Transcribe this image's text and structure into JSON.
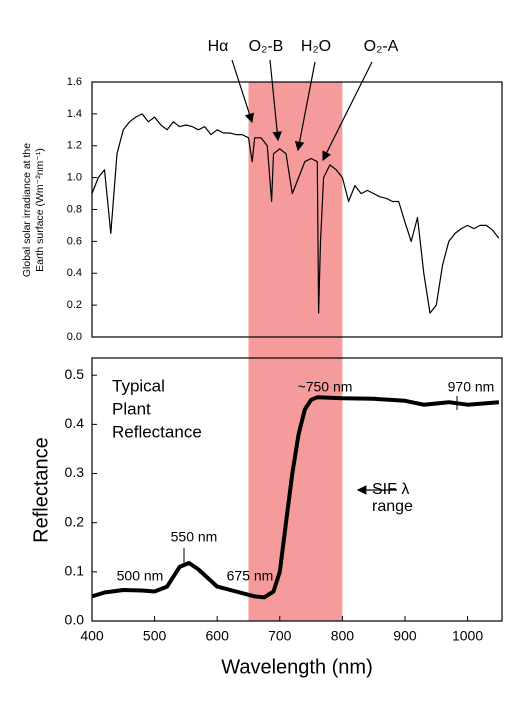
{
  "chart_data": [
    {
      "type": "line",
      "ylabel": [
        "Global solar irradiance at the",
        "Earth surface (Wm⁻²nm⁻¹)"
      ],
      "x": [
        400,
        410,
        420,
        430,
        440,
        450,
        460,
        470,
        480,
        490,
        500,
        510,
        520,
        530,
        540,
        550,
        560,
        570,
        580,
        590,
        600,
        610,
        620,
        630,
        640,
        650,
        656,
        660,
        670,
        680,
        687,
        690,
        700,
        710,
        720,
        730,
        740,
        750,
        760,
        762,
        765,
        770,
        780,
        790,
        800,
        810,
        820,
        830,
        840,
        850,
        860,
        870,
        880,
        890,
        900,
        910,
        920,
        930,
        940,
        950,
        960,
        970,
        980,
        990,
        1000,
        1010,
        1020,
        1030,
        1040,
        1050
      ],
      "values": [
        0.9,
        1.0,
        1.05,
        0.65,
        1.15,
        1.3,
        1.35,
        1.38,
        1.4,
        1.35,
        1.38,
        1.33,
        1.3,
        1.35,
        1.32,
        1.33,
        1.32,
        1.3,
        1.32,
        1.27,
        1.3,
        1.28,
        1.28,
        1.27,
        1.27,
        1.25,
        1.1,
        1.25,
        1.25,
        1.2,
        0.85,
        1.15,
        1.18,
        1.15,
        0.9,
        1.0,
        1.1,
        1.12,
        1.1,
        0.15,
        0.6,
        1.0,
        1.08,
        1.05,
        1.0,
        0.85,
        0.95,
        0.9,
        0.92,
        0.9,
        0.88,
        0.87,
        0.85,
        0.85,
        0.72,
        0.6,
        0.75,
        0.4,
        0.15,
        0.2,
        0.45,
        0.6,
        0.65,
        0.68,
        0.7,
        0.68,
        0.7,
        0.7,
        0.67,
        0.62
      ],
      "color": "#000000",
      "xlim": [
        400,
        1055
      ],
      "ylim": [
        0,
        1.6
      ],
      "yticks": [
        {
          "value": 0,
          "label": "0.0"
        },
        {
          "value": 0.2,
          "label": "0.2"
        },
        {
          "value": 0.4,
          "label": "0.4"
        },
        {
          "value": 0.6,
          "label": "0.6"
        },
        {
          "value": 0.8,
          "label": "0.8"
        },
        {
          "value": 1,
          "label": "1.0"
        },
        {
          "value": 1.2,
          "label": "1.2"
        },
        {
          "value": 1.4,
          "label": "1.4"
        },
        {
          "value": 1.6,
          "label": "1.6"
        }
      ],
      "annotations": [
        "Hα",
        "O₂-B",
        "H₂O",
        "O₂-A"
      ]
    },
    {
      "type": "line",
      "xlabel": "Wavelength (nm)",
      "ylabel": "Reflectance",
      "x": [
        400,
        420,
        450,
        480,
        500,
        520,
        540,
        555,
        570,
        600,
        630,
        660,
        675,
        690,
        700,
        710,
        720,
        730,
        740,
        750,
        760,
        800,
        850,
        900,
        930,
        970,
        1000,
        1050
      ],
      "values": [
        0.05,
        0.058,
        0.063,
        0.062,
        0.06,
        0.07,
        0.11,
        0.118,
        0.105,
        0.07,
        0.06,
        0.05,
        0.048,
        0.06,
        0.1,
        0.2,
        0.3,
        0.38,
        0.43,
        0.45,
        0.455,
        0.453,
        0.452,
        0.448,
        0.44,
        0.445,
        0.44,
        0.445
      ],
      "color": "#000000",
      "xlim": [
        400,
        1055
      ],
      "ylim": [
        0,
        0.535
      ],
      "xticks": [
        400,
        500,
        600,
        700,
        800,
        900,
        1000
      ],
      "yticks": [
        {
          "value": 0,
          "label": "0.0"
        },
        0.1,
        0.2,
        0.3,
        0.4,
        0.5
      ],
      "band": [
        650,
        800
      ],
      "band_color": "#f58a8a",
      "annotations": [
        "Typical",
        "Plant",
        "Reflectance",
        "550 nm",
        "500 nm",
        "675 nm",
        "~750 nm",
        "970 nm",
        "SIF λ",
        "range"
      ]
    }
  ]
}
